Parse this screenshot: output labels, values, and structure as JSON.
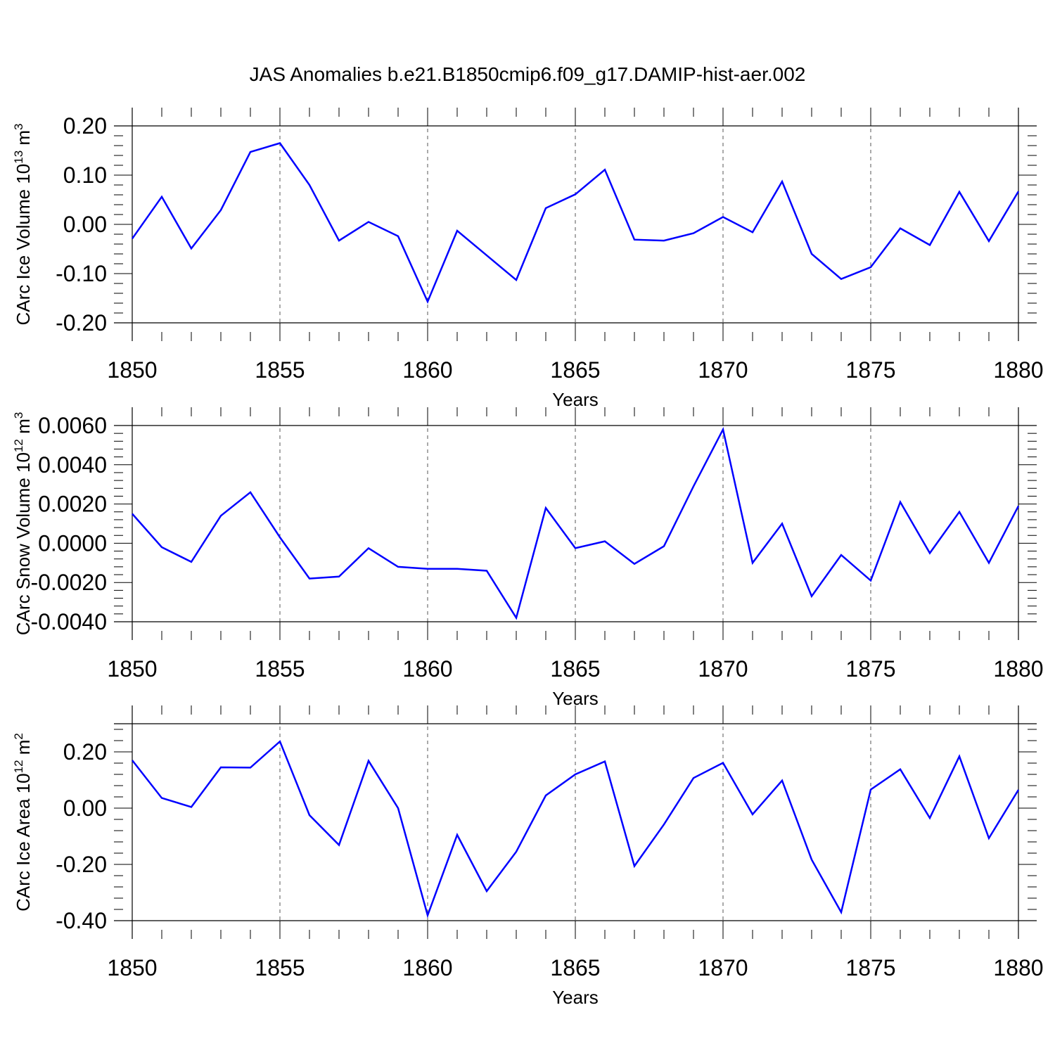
{
  "title": "JAS Anomalies b.e21.B1850cmip6.f09_g17.DAMIP-hist-aer.002",
  "colors": {
    "series": "#0000ff",
    "axis": "#000000",
    "grid": "#555555"
  },
  "chart_data": [
    {
      "type": "line",
      "ylabel": {
        "main": "CArc Ice Volume 10",
        "sup": "13",
        "unit": " m",
        "unit_sup": "3"
      },
      "xlabel": "Years",
      "xlim": [
        1850,
        1880
      ],
      "ylim": [
        -0.2,
        0.2
      ],
      "yticks": [
        -0.2,
        -0.1,
        0.0,
        0.1,
        0.2
      ],
      "ytick_labels": [
        "-0.20",
        "-0.10",
        "0.00",
        "0.10",
        "0.20"
      ],
      "xticks": [
        1850,
        1855,
        1860,
        1865,
        1870,
        1875,
        1880
      ],
      "xtick_labels": [
        "1850",
        "1855",
        "1860",
        "1865",
        "1870",
        "1875",
        "1880"
      ],
      "grid": "dashed vertical at major x ticks",
      "x": [
        1850,
        1851,
        1852,
        1853,
        1854,
        1855,
        1856,
        1857,
        1858,
        1859,
        1860,
        1861,
        1862,
        1863,
        1864,
        1865,
        1866,
        1867,
        1868,
        1869,
        1870,
        1871,
        1872,
        1873,
        1874,
        1875,
        1876,
        1877,
        1878,
        1879,
        1880
      ],
      "values": [
        -0.029,
        0.056,
        -0.049,
        0.029,
        0.147,
        0.165,
        0.08,
        -0.033,
        0.005,
        -0.024,
        -0.157,
        -0.013,
        -0.063,
        -0.113,
        0.033,
        0.061,
        0.111,
        -0.031,
        -0.033,
        -0.018,
        0.015,
        -0.016,
        0.087,
        -0.06,
        -0.111,
        -0.087,
        -0.008,
        -0.042,
        0.066,
        -0.034,
        0.067
      ]
    },
    {
      "type": "line",
      "ylabel": {
        "main": "CArc Snow Volume 10",
        "sup": "12",
        "unit": " m",
        "unit_sup": "3"
      },
      "xlabel": "Years",
      "xlim": [
        1850,
        1880
      ],
      "ylim": [
        -0.004,
        0.006
      ],
      "yticks": [
        -0.004,
        -0.002,
        0.0,
        0.002,
        0.004,
        0.006
      ],
      "ytick_labels": [
        "-0.0040",
        "-0.0020",
        "0.0000",
        "0.0020",
        "0.0040",
        "0.0060"
      ],
      "xticks": [
        1850,
        1855,
        1860,
        1865,
        1870,
        1875,
        1880
      ],
      "xtick_labels": [
        "1850",
        "1855",
        "1860",
        "1865",
        "1870",
        "1875",
        "1880"
      ],
      "grid": "dashed vertical at major x ticks",
      "x": [
        1850,
        1851,
        1852,
        1853,
        1854,
        1855,
        1856,
        1857,
        1858,
        1859,
        1860,
        1861,
        1862,
        1863,
        1864,
        1865,
        1866,
        1867,
        1868,
        1869,
        1870,
        1871,
        1872,
        1873,
        1874,
        1875,
        1876,
        1877,
        1878,
        1879,
        1880
      ],
      "values": [
        0.0015,
        -0.0002,
        -0.00095,
        0.0014,
        0.0026,
        0.0003,
        -0.0018,
        -0.0017,
        -0.00025,
        -0.0012,
        -0.0013,
        -0.0013,
        -0.0014,
        -0.0038,
        0.0018,
        -0.00025,
        0.0001,
        -0.00105,
        -0.00015,
        0.0029,
        0.0058,
        -0.001,
        0.001,
        -0.0027,
        -0.0006,
        -0.0019,
        0.0021,
        -0.0005,
        0.0016,
        -0.001,
        0.0019
      ]
    },
    {
      "type": "line",
      "ylabel": {
        "main": "CArc Ice Area 10",
        "sup": "12",
        "unit": " m",
        "unit_sup": "2"
      },
      "xlabel": "Years",
      "xlim": [
        1850,
        1880
      ],
      "ylim": [
        -0.4,
        0.3
      ],
      "yticks": [
        -0.4,
        -0.2,
        0.0,
        0.2
      ],
      "ytick_labels": [
        "-0.40",
        "-0.20",
        "0.00",
        "0.20"
      ],
      "xticks": [
        1850,
        1855,
        1860,
        1865,
        1870,
        1875,
        1880
      ],
      "xtick_labels": [
        "1850",
        "1855",
        "1860",
        "1865",
        "1870",
        "1875",
        "1880"
      ],
      "grid": "dashed vertical at major x ticks",
      "x": [
        1850,
        1851,
        1852,
        1853,
        1854,
        1855,
        1856,
        1857,
        1858,
        1859,
        1860,
        1861,
        1862,
        1863,
        1864,
        1865,
        1866,
        1867,
        1868,
        1869,
        1870,
        1871,
        1872,
        1873,
        1874,
        1875,
        1876,
        1877,
        1878,
        1879,
        1880
      ],
      "values": [
        0.17,
        0.036,
        0.004,
        0.145,
        0.144,
        0.237,
        -0.025,
        -0.131,
        0.168,
        0.0,
        -0.381,
        -0.095,
        -0.295,
        -0.155,
        0.045,
        0.12,
        0.166,
        -0.206,
        -0.058,
        0.107,
        0.161,
        -0.022,
        0.098,
        -0.183,
        -0.37,
        0.066,
        0.138,
        -0.035,
        0.184,
        -0.107,
        0.065
      ]
    }
  ]
}
